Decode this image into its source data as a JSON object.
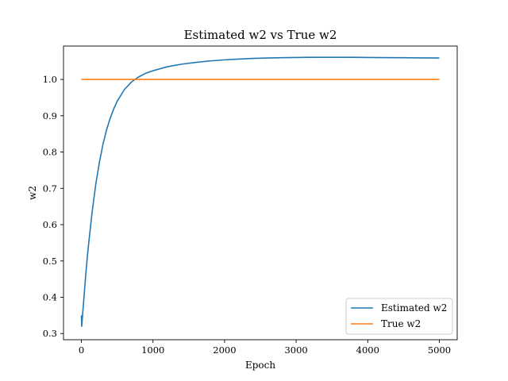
{
  "chart_data": {
    "type": "line",
    "title": "Estimated w2 vs True w2",
    "xlabel": "Epoch",
    "ylabel": "w2",
    "xlim": [
      -250,
      5250
    ],
    "ylim": [
      0.283,
      1.092
    ],
    "xticks": [
      0,
      1000,
      2000,
      3000,
      4000,
      5000
    ],
    "yticks": [
      0.3,
      0.4,
      0.5,
      0.6,
      0.7,
      0.8,
      0.9,
      1.0
    ],
    "xtick_labels": [
      "0",
      "1000",
      "2000",
      "3000",
      "4000",
      "5000"
    ],
    "ytick_labels": [
      "0.3",
      "0.4",
      "0.5",
      "0.6",
      "0.7",
      "0.8",
      "0.9",
      "1.0"
    ],
    "grid": false,
    "legend_position": "lower-right",
    "series": [
      {
        "name": "Estimated w2",
        "color": "#1f77b4",
        "x": [
          0,
          5,
          10,
          20,
          40,
          60,
          80,
          100,
          150,
          200,
          250,
          300,
          350,
          400,
          450,
          500,
          600,
          700,
          800,
          900,
          1000,
          1200,
          1400,
          1600,
          1800,
          2000,
          2200,
          2400,
          2600,
          2800,
          3000,
          3200,
          3500,
          3800,
          4000,
          4200,
          4400,
          4600,
          4800,
          5000
        ],
        "y": [
          0.35,
          0.32,
          0.335,
          0.36,
          0.41,
          0.46,
          0.505,
          0.545,
          0.635,
          0.71,
          0.77,
          0.82,
          0.86,
          0.892,
          0.918,
          0.94,
          0.972,
          0.993,
          1.007,
          1.017,
          1.024,
          1.035,
          1.042,
          1.047,
          1.051,
          1.054,
          1.056,
          1.058,
          1.059,
          1.06,
          1.0605,
          1.061,
          1.061,
          1.061,
          1.0605,
          1.0602,
          1.06,
          1.0597,
          1.0594,
          1.059
        ]
      },
      {
        "name": "True w2",
        "color": "#ff7f0e",
        "x": [
          0,
          5000
        ],
        "y": [
          1.0,
          1.0
        ]
      }
    ]
  }
}
